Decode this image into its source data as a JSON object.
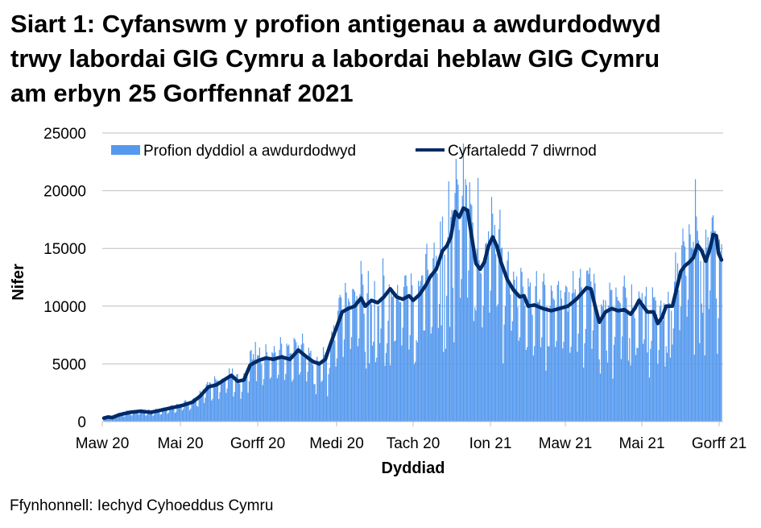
{
  "title_lines": [
    "Siart 1: Cyfanswm y profion antigenau a awdurdodwyd",
    "trwy labordai GIG Cymru a labordai heblaw GIG Cymru",
    "am erbyn 25 Gorffennaf 2021"
  ],
  "source": "Ffynhonnell: Iechyd Cyhoeddus Cymru",
  "colors": {
    "bars": "#5599EE",
    "line": "#002A66",
    "grid": "#BFBFBF"
  },
  "chart_data": {
    "type": "bar",
    "title": "Siart 1: Cyfanswm y profion antigenau a awdurdodwyd trwy labordai GIG Cymru a labordai heblaw GIG Cymru am erbyn 25 Gorffennaf 2021",
    "xlabel": "Dyddiad",
    "ylabel": "Nifer",
    "ylim": [
      0,
      25000
    ],
    "yticks": [
      0,
      5000,
      10000,
      15000,
      20000,
      25000
    ],
    "xticks": [
      "Maw 20",
      "Mai 20",
      "Gorff 20",
      "Medi 20",
      "Tach 20",
      "Ion 21",
      "Maw 21",
      "Mai 21",
      "Gorff 21"
    ],
    "grid": true,
    "legend_position": "top",
    "legend": [
      "Profion dyddiol a awdurdodwyd",
      "Cyfartaledd 7 diwrnod"
    ],
    "series": [
      {
        "name": "Cyfartaledd 7 diwrnod",
        "type": "line",
        "points_day_value": [
          [
            0,
            300
          ],
          [
            4,
            400
          ],
          [
            8,
            350
          ],
          [
            15,
            600
          ],
          [
            25,
            800
          ],
          [
            35,
            900
          ],
          [
            45,
            800
          ],
          [
            55,
            1000
          ],
          [
            65,
            1200
          ],
          [
            75,
            1400
          ],
          [
            85,
            1700
          ],
          [
            92,
            2200
          ],
          [
            100,
            3000
          ],
          [
            108,
            3200
          ],
          [
            115,
            3600
          ],
          [
            122,
            4000
          ],
          [
            128,
            3500
          ],
          [
            134,
            3600
          ],
          [
            140,
            4900
          ],
          [
            148,
            5300
          ],
          [
            155,
            5500
          ],
          [
            162,
            5400
          ],
          [
            170,
            5600
          ],
          [
            178,
            5400
          ],
          [
            186,
            6200
          ],
          [
            194,
            5600
          ],
          [
            200,
            5200
          ],
          [
            206,
            5000
          ],
          [
            212,
            5400
          ],
          [
            216,
            6500
          ],
          [
            222,
            8000
          ],
          [
            228,
            9500
          ],
          [
            234,
            9800
          ],
          [
            240,
            10000
          ],
          [
            246,
            10700
          ],
          [
            250,
            10000
          ],
          [
            256,
            10500
          ],
          [
            262,
            10300
          ],
          [
            268,
            10800
          ],
          [
            274,
            11500
          ],
          [
            280,
            10800
          ],
          [
            286,
            10600
          ],
          [
            292,
            10900
          ],
          [
            296,
            10500
          ],
          [
            302,
            11000
          ],
          [
            308,
            11800
          ],
          [
            312,
            12500
          ],
          [
            318,
            13200
          ],
          [
            324,
            14800
          ],
          [
            328,
            15200
          ],
          [
            332,
            16000
          ],
          [
            336,
            18200
          ],
          [
            340,
            17700
          ],
          [
            344,
            18500
          ],
          [
            348,
            18300
          ],
          [
            352,
            16000
          ],
          [
            356,
            13700
          ],
          [
            360,
            13200
          ],
          [
            364,
            13800
          ],
          [
            368,
            15200
          ],
          [
            372,
            16000
          ],
          [
            376,
            15200
          ],
          [
            380,
            13800
          ],
          [
            386,
            12300
          ],
          [
            392,
            11400
          ],
          [
            398,
            10800
          ],
          [
            402,
            10900
          ],
          [
            406,
            10000
          ],
          [
            412,
            10100
          ],
          [
            420,
            9800
          ],
          [
            428,
            9600
          ],
          [
            436,
            9800
          ],
          [
            444,
            10000
          ],
          [
            452,
            10600
          ],
          [
            458,
            11200
          ],
          [
            462,
            11600
          ],
          [
            466,
            11500
          ],
          [
            470,
            10000
          ],
          [
            474,
            8600
          ],
          [
            480,
            9500
          ],
          [
            486,
            9800
          ],
          [
            492,
            9600
          ],
          [
            498,
            9700
          ],
          [
            504,
            9300
          ],
          [
            508,
            9800
          ],
          [
            512,
            10500
          ],
          [
            516,
            10000
          ],
          [
            520,
            9500
          ],
          [
            526,
            9500
          ],
          [
            530,
            8500
          ],
          [
            534,
            9000
          ],
          [
            538,
            10000
          ],
          [
            544,
            10000
          ],
          [
            548,
            11500
          ],
          [
            552,
            13000
          ],
          [
            556,
            13500
          ],
          [
            560,
            13800
          ],
          [
            564,
            14200
          ],
          [
            568,
            15300
          ],
          [
            572,
            14800
          ],
          [
            576,
            13900
          ],
          [
            580,
            15000
          ],
          [
            583,
            16200
          ],
          [
            586,
            16100
          ],
          [
            588,
            14600
          ],
          [
            591,
            14000
          ]
        ]
      },
      {
        "name": "Profion dyddiol a awdurdodwyd",
        "type": "bar",
        "note": "daily bars fluctuate around the 7-day average; notable peaks ~21000 (Nov-Dec 2020) and ~21000 (Jul 2021)",
        "peaks_day_value": [
          [
            123,
            4600
          ],
          [
            140,
            6100
          ],
          [
            145,
            6900
          ],
          [
            330,
            20800
          ],
          [
            338,
            21000
          ],
          [
            346,
            21000
          ],
          [
            358,
            21100
          ],
          [
            566,
            21000
          ]
        ]
      }
    ]
  },
  "axes": {
    "y_ticks": [
      "0",
      "5000",
      "10000",
      "15000",
      "20000",
      "25000"
    ],
    "x_ticks": [
      "Maw 20",
      "Mai 20",
      "Gorff 20",
      "Medi 20",
      "Tach 20",
      "Ion 21",
      "Maw 21",
      "Mai 21",
      "Gorff 21"
    ],
    "x_title": "Dyddiad",
    "y_title": "Nifer"
  },
  "legend": {
    "bars_label": "Profion dyddiol a awdurdodwyd",
    "line_label": "Cyfartaledd 7 diwrnod"
  }
}
